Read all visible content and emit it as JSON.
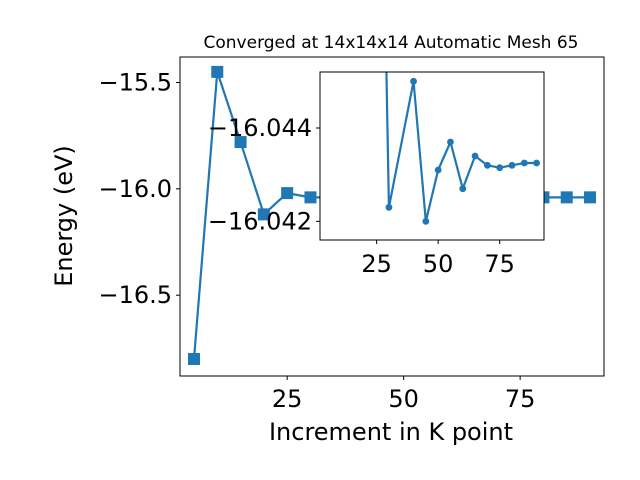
{
  "chart_data": [
    {
      "type": "line",
      "title": "Converged at 14x14x14 Automatic Mesh 65",
      "xlabel": "Increment in K point",
      "ylabel": "Energy (eV)",
      "xlim": [
        2,
        93
      ],
      "ylim": [
        -16.88,
        -15.38
      ],
      "xticks": [
        25,
        50,
        75
      ],
      "yticks": [
        -15.5,
        -16.0,
        -16.5
      ],
      "xtick_labels": [
        "25",
        "50",
        "75"
      ],
      "ytick_labels": [
        "−15.5",
        "−16.0",
        "−16.5"
      ],
      "marker": "square",
      "color": "#1f77b4",
      "grid": false,
      "series": [
        {
          "x": [
            5,
            10,
            15,
            20,
            25,
            30,
            35,
            40,
            45,
            50,
            55,
            60,
            65,
            70,
            75,
            80,
            85,
            90
          ],
          "y": [
            -16.8,
            -15.45,
            -15.78,
            -16.12,
            -16.02,
            -16.04,
            -16.04,
            -16.04,
            -16.04,
            -16.04,
            -16.04,
            -16.04,
            -16.04,
            -16.04,
            -16.04,
            -16.04,
            -16.04,
            -16.04
          ]
        }
      ]
    },
    {
      "type": "line",
      "role": "inset",
      "xlim": [
        2,
        93
      ],
      "ylim": [
        -16.0416,
        -16.0452
      ],
      "xticks": [
        25,
        50,
        75
      ],
      "yticks": [
        -16.044,
        -16.042
      ],
      "xtick_labels": [
        "25",
        "50",
        "75"
      ],
      "ytick_labels": [
        "−16.044",
        "−16.042"
      ],
      "marker": "circle",
      "color": "#1f77b4",
      "series": [
        {
          "x": [
            28,
            30,
            40,
            45,
            50,
            55,
            60,
            65,
            70,
            75,
            80,
            85,
            90
          ],
          "y": [
            -16.048,
            -16.0423,
            -16.045,
            -16.042,
            -16.0431,
            -16.0437,
            -16.0427,
            -16.0434,
            -16.0432,
            -16.04315,
            -16.0432,
            -16.04325,
            -16.04325
          ]
        }
      ]
    }
  ]
}
